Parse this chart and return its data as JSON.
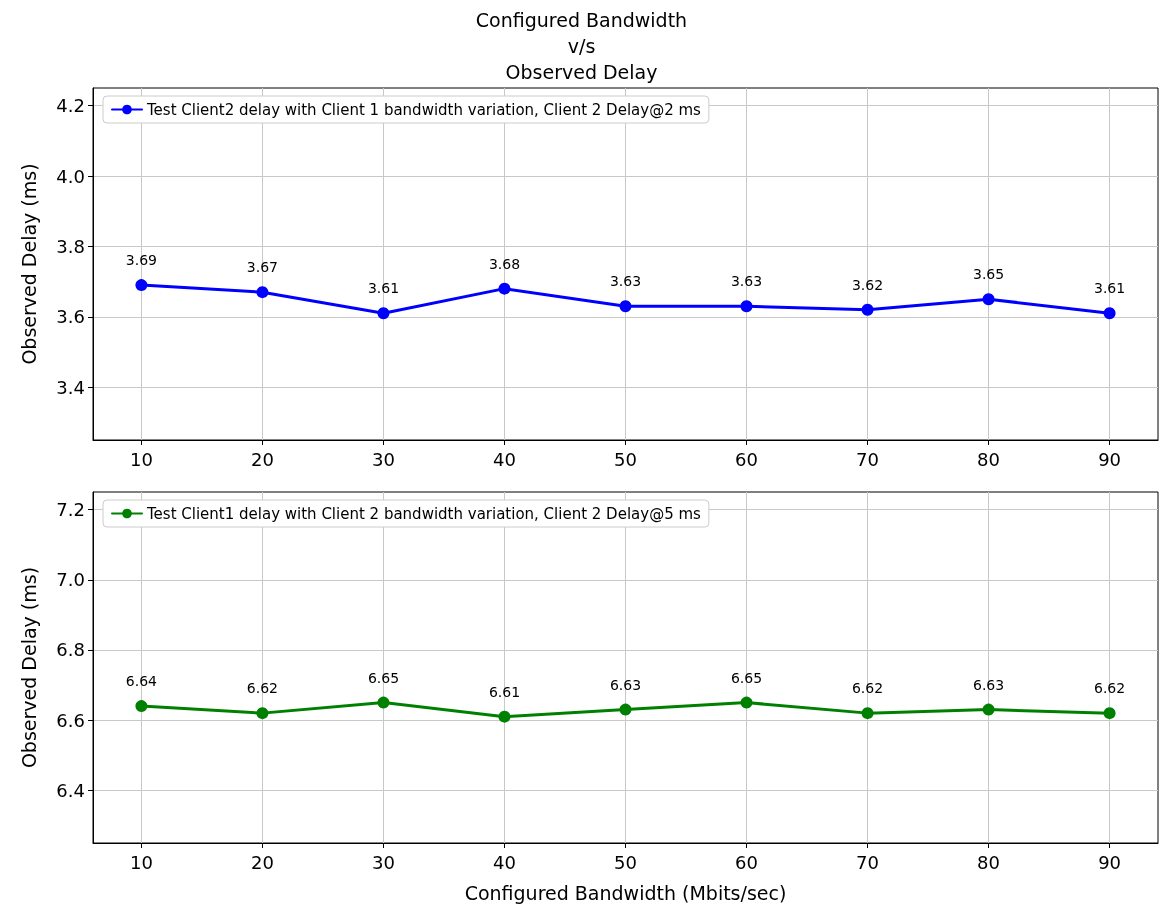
{
  "chart_data": [
    {
      "type": "line",
      "title": "Configured Bandwidth\nv/s\nObserved Delay",
      "ylabel": "Observed Delay (ms)",
      "x": [
        10,
        20,
        30,
        40,
        50,
        60,
        70,
        80,
        90
      ],
      "xlim": [
        6,
        94
      ],
      "xticks": [
        10,
        20,
        30,
        40,
        50,
        60,
        70,
        80,
        90
      ],
      "ylim": [
        3.25,
        4.25
      ],
      "yticks": [
        3.4,
        3.6,
        3.8,
        {
          "value": 4,
          "label": "4.0"
        },
        4.2
      ],
      "series": [
        {
          "name": "Test Client2 delay with Client 1 bandwidth variation, Client 2 Delay@2 ms",
          "color": "#0000ff",
          "values": [
            3.69,
            3.67,
            3.61,
            3.68,
            3.63,
            3.63,
            3.62,
            3.65,
            3.61
          ]
        }
      ],
      "data_labels": true,
      "grid": true,
      "legend": "top left",
      "marker": "circle",
      "line_style": "solid"
    },
    {
      "type": "line",
      "xlabel": "Configured Bandwidth (Mbits/sec)",
      "ylabel": "Observed Delay (ms)",
      "x": [
        10,
        20,
        30,
        40,
        50,
        60,
        70,
        80,
        90
      ],
      "xlim": [
        6,
        94
      ],
      "xticks": [
        10,
        20,
        30,
        40,
        50,
        60,
        70,
        80,
        90
      ],
      "ylim": [
        6.25,
        7.25
      ],
      "yticks": [
        6.4,
        6.6,
        6.8,
        {
          "value": 7,
          "label": "7.0"
        },
        7.2
      ],
      "series": [
        {
          "name": "Test Client1 delay with Client 2 bandwidth variation, Client 2 Delay@5 ms",
          "color": "#008000",
          "values": [
            6.64,
            6.62,
            6.65,
            6.61,
            6.63,
            6.65,
            6.62,
            6.63,
            6.62
          ]
        }
      ],
      "data_labels": true,
      "grid": true,
      "legend": "top left",
      "marker": "circle",
      "line_style": "solid"
    }
  ]
}
